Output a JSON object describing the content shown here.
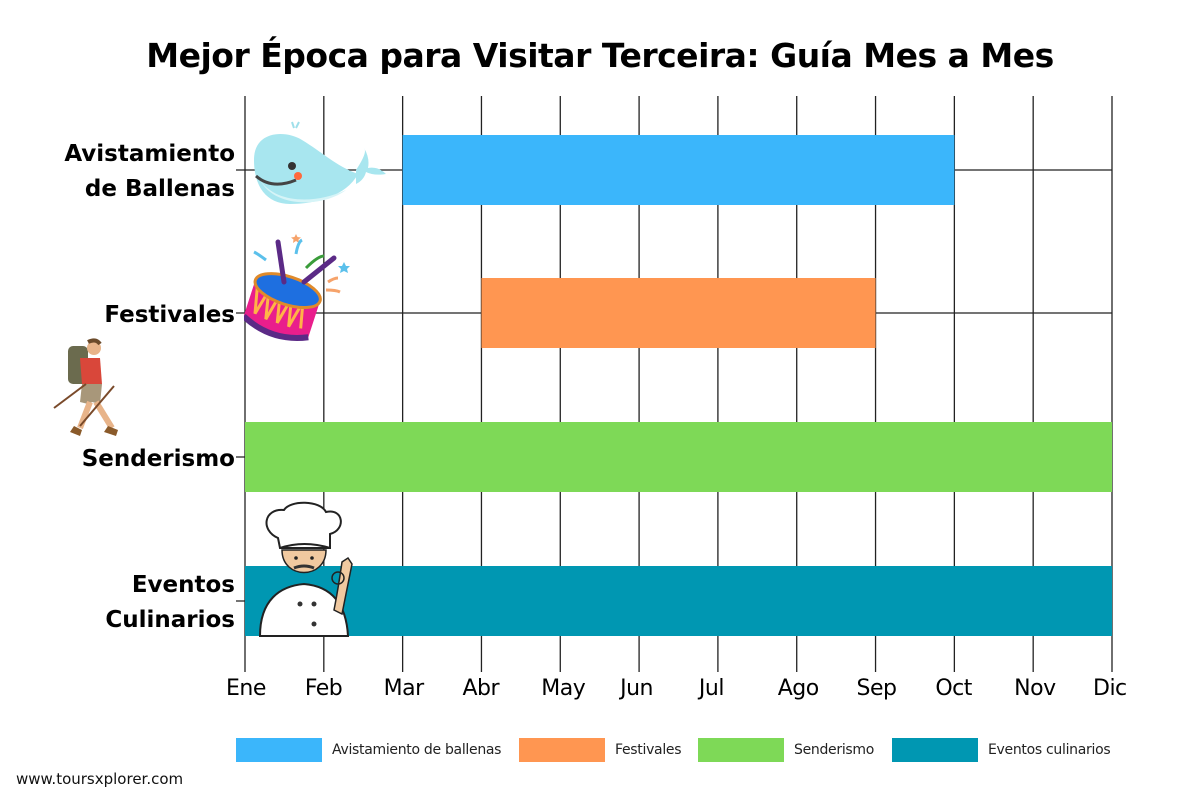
{
  "chart_data": {
    "type": "bar",
    "subtype": "gantt-horizontal",
    "title": "Mejor Época para Visitar Terceira: Guía Mes a Mes",
    "xlabel": "",
    "ylabel": "",
    "months": [
      "Ene",
      "Feb",
      "Mar",
      "Abr",
      "May",
      "Jun",
      "Jul",
      "Ago",
      "Sep",
      "Oct",
      "Nov",
      "Dic"
    ],
    "grid": true,
    "legend_position": "bottom",
    "series": [
      {
        "name": "Avistamiento de ballenas",
        "label": "Avistamiento de Ballenas",
        "label_lines": [
          "Avistamiento",
          "de Ballenas"
        ],
        "start": "Mar",
        "end": "Oct",
        "start_index": 2,
        "end_index": 9,
        "color": "#3bb6fb",
        "icon": "whale-icon"
      },
      {
        "name": "Festivales",
        "label": "Festivales",
        "label_lines": [
          "Festivales"
        ],
        "start": "Abr",
        "end": "Sep",
        "start_index": 3,
        "end_index": 8,
        "color": "#ff9651",
        "icon": "drum-icon"
      },
      {
        "name": "Senderismo",
        "label": "Senderismo",
        "label_lines": [
          "Senderismo"
        ],
        "start": "Ene",
        "end": "Dic",
        "start_index": 0,
        "end_index": 11,
        "color": "#7ed957",
        "icon": "hiker-icon"
      },
      {
        "name": "Eventos culinarios",
        "label": "Eventos Culinarios",
        "label_lines": [
          "Eventos",
          "Culinarios"
        ],
        "start": "Ene",
        "end": "Dic",
        "start_index": 0,
        "end_index": 11,
        "color": "#0097b2",
        "icon": "chef-icon"
      }
    ]
  },
  "header": {
    "title": "Mejor Época para Visitar Terceira: Guía Mes a Mes"
  },
  "footer": {
    "text": "www.toursxplorer.com"
  }
}
